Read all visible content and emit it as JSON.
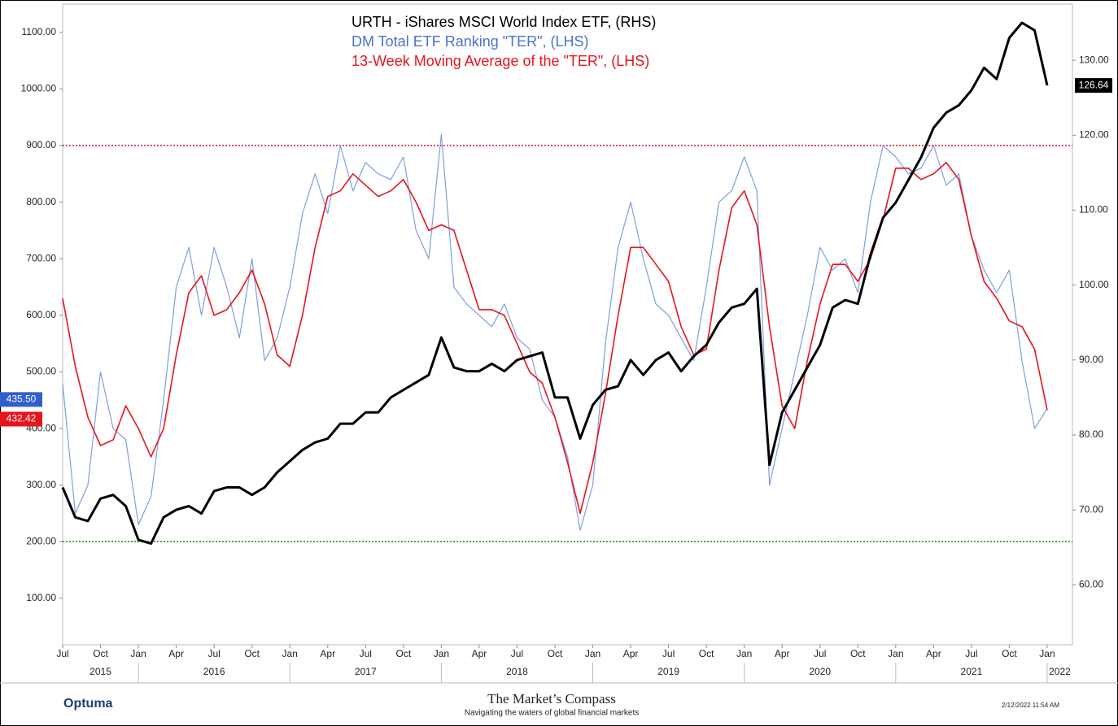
{
  "chart_data": {
    "type": "line",
    "x": [
      "2015-07",
      "2015-08",
      "2015-09",
      "2015-10",
      "2015-11",
      "2015-12",
      "2016-01",
      "2016-02",
      "2016-03",
      "2016-04",
      "2016-05",
      "2016-06",
      "2016-07",
      "2016-08",
      "2016-09",
      "2016-10",
      "2016-11",
      "2016-12",
      "2017-01",
      "2017-02",
      "2017-03",
      "2017-04",
      "2017-05",
      "2017-06",
      "2017-07",
      "2017-08",
      "2017-09",
      "2017-10",
      "2017-11",
      "2017-12",
      "2018-01",
      "2018-02",
      "2018-03",
      "2018-04",
      "2018-05",
      "2018-06",
      "2018-07",
      "2018-08",
      "2018-09",
      "2018-10",
      "2018-11",
      "2018-12",
      "2019-01",
      "2019-02",
      "2019-03",
      "2019-04",
      "2019-05",
      "2019-06",
      "2019-07",
      "2019-08",
      "2019-09",
      "2019-10",
      "2019-11",
      "2019-12",
      "2020-01",
      "2020-02",
      "2020-03",
      "2020-04",
      "2020-05",
      "2020-06",
      "2020-07",
      "2020-08",
      "2020-09",
      "2020-10",
      "2020-11",
      "2020-12",
      "2021-01",
      "2021-02",
      "2021-03",
      "2021-04",
      "2021-05",
      "2021-06",
      "2021-07",
      "2021-08",
      "2021-09",
      "2021-10",
      "2021-11",
      "2021-12",
      "2022-01"
    ],
    "series": [
      {
        "name": "DM Total ETF Ranking \"TER\", (LHS)",
        "color": "#7e9fe0",
        "width": 1.2,
        "axis": "y",
        "last_label": "435.50",
        "label_color": "#2f5fd0",
        "values": [
          480,
          250,
          300,
          500,
          400,
          380,
          230,
          280,
          450,
          650,
          720,
          600,
          720,
          650,
          560,
          700,
          520,
          560,
          650,
          780,
          850,
          780,
          900,
          820,
          870,
          850,
          840,
          880,
          750,
          700,
          920,
          650,
          620,
          600,
          580,
          620,
          560,
          540,
          450,
          420,
          350,
          220,
          300,
          550,
          720,
          800,
          700,
          620,
          600,
          560,
          520,
          650,
          800,
          820,
          880,
          820,
          300,
          400,
          500,
          600,
          720,
          680,
          700,
          640,
          800,
          900,
          880,
          850,
          860,
          900,
          830,
          850,
          740,
          680,
          640,
          680,
          520,
          400,
          435.5
        ]
      },
      {
        "name": "13-Week Moving Average of the \"TER\", (LHS)",
        "color": "#e8141c",
        "width": 1.6,
        "axis": "y",
        "last_label": "432.42",
        "label_color": "#e8141c",
        "values": [
          630,
          510,
          420,
          370,
          380,
          440,
          400,
          350,
          400,
          530,
          640,
          670,
          600,
          610,
          640,
          680,
          620,
          530,
          510,
          600,
          720,
          810,
          820,
          850,
          830,
          810,
          820,
          840,
          800,
          750,
          760,
          750,
          680,
          610,
          610,
          600,
          550,
          500,
          480,
          420,
          340,
          250,
          340,
          460,
          600,
          720,
          720,
          690,
          660,
          580,
          530,
          540,
          680,
          790,
          820,
          760,
          580,
          440,
          400,
          520,
          620,
          690,
          690,
          660,
          700,
          770,
          860,
          860,
          840,
          850,
          870,
          840,
          740,
          660,
          630,
          590,
          580,
          540,
          432.42
        ]
      },
      {
        "name": "URTH - iShares MSCI World Index ETF, (RHS)",
        "color": "#000000",
        "width": 3,
        "axis": "y2",
        "last_label": "126.64",
        "label_color": "#000000",
        "values": [
          73,
          69,
          68.5,
          71.5,
          72,
          70.5,
          66,
          65.5,
          69,
          70,
          70.5,
          69.5,
          72.5,
          73,
          73,
          72,
          73,
          75,
          76.5,
          78,
          79,
          79.5,
          81.5,
          81.5,
          83,
          83,
          85,
          86,
          87,
          88,
          93,
          89,
          88.5,
          88.5,
          89.5,
          88.5,
          90,
          90.5,
          91,
          85,
          85,
          79.5,
          84,
          86,
          86.5,
          90,
          88,
          90,
          91,
          88.5,
          90.5,
          92,
          95,
          97,
          97.5,
          99.5,
          76,
          83,
          86,
          89,
          92,
          97,
          98,
          97.5,
          104,
          109,
          111,
          114,
          117,
          121,
          123,
          124,
          126,
          129,
          127.5,
          133,
          135,
          134,
          126.64
        ]
      }
    ],
    "xlim": [
      "2015-07",
      "2022-03"
    ],
    "xticks": [
      {
        "value": "2015-07",
        "label": "Jul"
      },
      {
        "value": "2015-10",
        "label": "Oct"
      },
      {
        "value": "2016-01",
        "label": "Jan"
      },
      {
        "value": "2016-04",
        "label": "Apr"
      },
      {
        "value": "2016-07",
        "label": "Jul"
      },
      {
        "value": "2016-10",
        "label": "Oct"
      },
      {
        "value": "2017-01",
        "label": "Jan"
      },
      {
        "value": "2017-04",
        "label": "Apr"
      },
      {
        "value": "2017-07",
        "label": "Jul"
      },
      {
        "value": "2017-10",
        "label": "Oct"
      },
      {
        "value": "2018-01",
        "label": "Jan"
      },
      {
        "value": "2018-04",
        "label": "Apr"
      },
      {
        "value": "2018-07",
        "label": "Jul"
      },
      {
        "value": "2018-10",
        "label": "Oct"
      },
      {
        "value": "2019-01",
        "label": "Jan"
      },
      {
        "value": "2019-04",
        "label": "Apr"
      },
      {
        "value": "2019-07",
        "label": "Jul"
      },
      {
        "value": "2019-10",
        "label": "Oct"
      },
      {
        "value": "2020-01",
        "label": "Jan"
      },
      {
        "value": "2020-04",
        "label": "Apr"
      },
      {
        "value": "2020-07",
        "label": "Jul"
      },
      {
        "value": "2020-10",
        "label": "Oct"
      },
      {
        "value": "2021-01",
        "label": "Jan"
      },
      {
        "value": "2021-04",
        "label": "Apr"
      },
      {
        "value": "2021-07",
        "label": "Jul"
      },
      {
        "value": "2021-10",
        "label": "Oct"
      },
      {
        "value": "2022-01",
        "label": "Jan"
      }
    ],
    "years": [
      "2015",
      "2016",
      "2017",
      "2018",
      "2019",
      "2020",
      "2021",
      "2022"
    ],
    "ylim": [
      18,
      1150
    ],
    "yticks": [
      {
        "value": 100,
        "label": "100.00"
      },
      {
        "value": 200,
        "label": "200.00"
      },
      {
        "value": 300,
        "label": "300.00"
      },
      {
        "value": 400,
        "label": "400.00"
      },
      {
        "value": 500,
        "label": "500.00"
      },
      {
        "value": 600,
        "label": "600.00"
      },
      {
        "value": 700,
        "label": "700.00"
      },
      {
        "value": 800,
        "label": "800.00"
      },
      {
        "value": 900,
        "label": "900.00"
      },
      {
        "value": 1000,
        "label": "1000.00"
      },
      {
        "value": 1100,
        "label": "1100.00"
      }
    ],
    "y2lim": [
      52,
      137.5
    ],
    "y2ticks": [
      {
        "value": 60,
        "label": "60.00"
      },
      {
        "value": 70,
        "label": "70.00"
      },
      {
        "value": 80,
        "label": "80.00"
      },
      {
        "value": 90,
        "label": "90.00"
      },
      {
        "value": 100,
        "label": "100.00"
      },
      {
        "value": 110,
        "label": "110.00"
      },
      {
        "value": 120,
        "label": "120.00"
      },
      {
        "value": 130,
        "label": "130.00"
      }
    ],
    "hlines": [
      {
        "value": 900,
        "color": "#c8102e"
      },
      {
        "value": 200,
        "color": "#1a8a1a"
      }
    ]
  },
  "footer": {
    "logo": "Optuma",
    "brand": "The Market’s Compass",
    "tagline": "Navigating the waters of global financial markets",
    "timestamp": "2/12/2022 11:54 AM"
  }
}
